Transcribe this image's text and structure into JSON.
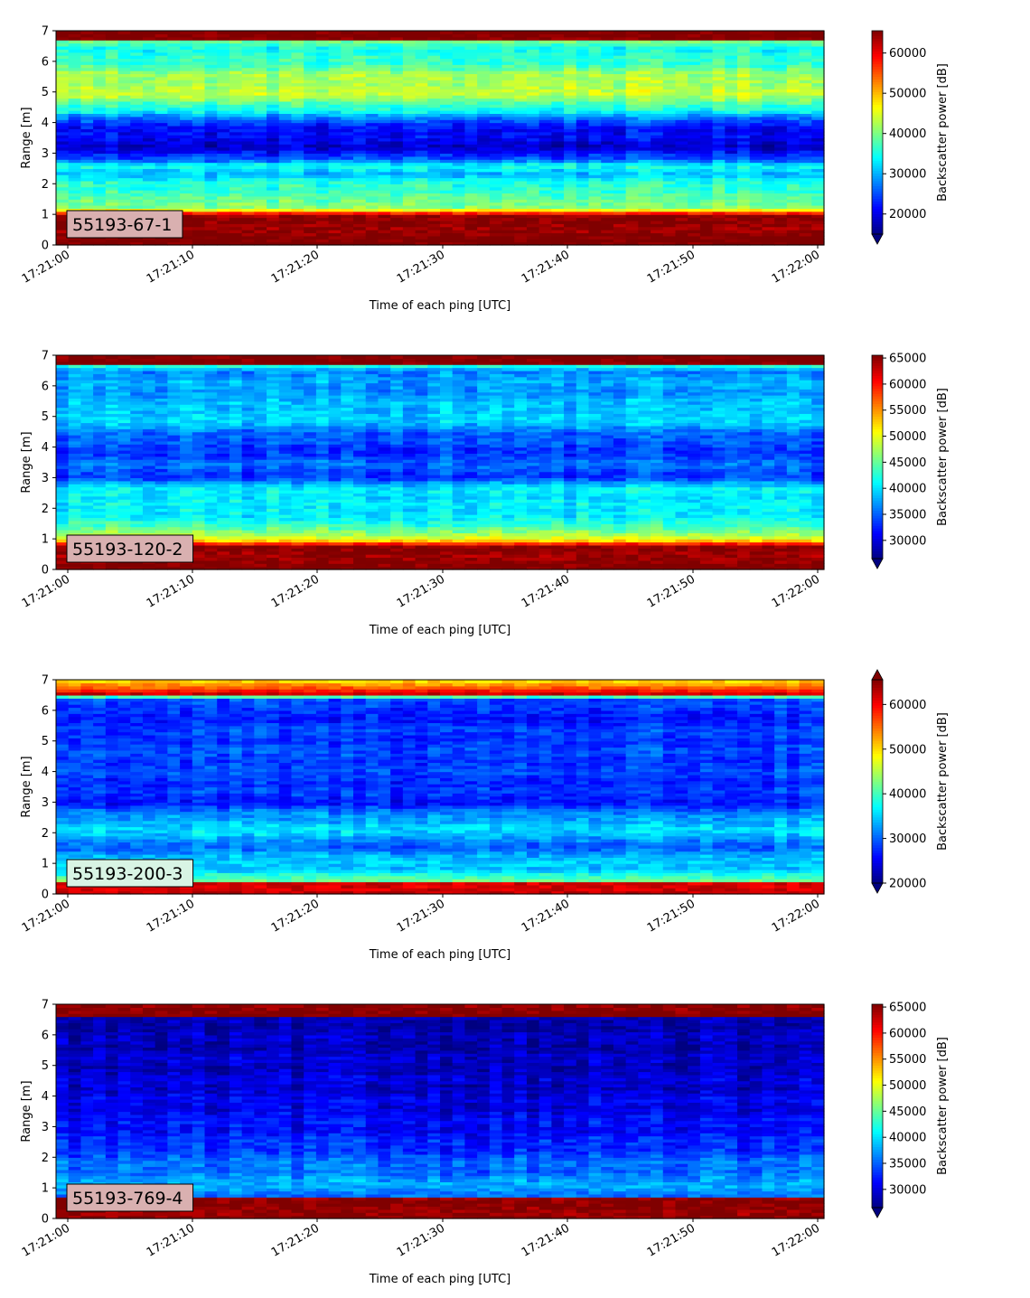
{
  "chart_data": [
    {
      "type": "heatmap",
      "label": "55193-67-1",
      "label_bg": "#d9b0b0",
      "xlabel": "Time of each ping [UTC]",
      "ylabel": "Range [m]",
      "cbar_label": "Backscatter power [dB]",
      "x_ticks": [
        "17:21:00",
        "17:21:10",
        "17:21:20",
        "17:21:30",
        "17:21:40",
        "17:21:50",
        "17:22:00"
      ],
      "y_ticks": [
        0,
        1,
        2,
        3,
        4,
        5,
        6,
        7
      ],
      "ylim": [
        0,
        7
      ],
      "clim": [
        15000,
        65535
      ],
      "cbar_ticks": [
        20000,
        30000,
        40000,
        50000,
        60000
      ],
      "extend": "min",
      "colormap": "jet",
      "profile": [
        [
          0.0,
          65535
        ],
        [
          0.3,
          65535
        ],
        [
          1.0,
          64000
        ],
        [
          1.1,
          52000
        ],
        [
          1.2,
          42000
        ],
        [
          1.5,
          38000
        ],
        [
          2.0,
          36500
        ],
        [
          2.3,
          30000
        ],
        [
          2.6,
          36000
        ],
        [
          2.8,
          25000
        ],
        [
          3.2,
          19500
        ],
        [
          3.7,
          21000
        ],
        [
          4.2,
          27000
        ],
        [
          4.4,
          35000
        ],
        [
          5.0,
          44000
        ],
        [
          5.5,
          42000
        ],
        [
          6.0,
          37000
        ],
        [
          6.4,
          34000
        ],
        [
          6.65,
          40000
        ],
        [
          6.7,
          65535
        ],
        [
          7.0,
          65535
        ]
      ]
    },
    {
      "type": "heatmap",
      "label": "55193-120-2",
      "label_bg": "#d9b0b0",
      "xlabel": "Time of each ping [UTC]",
      "ylabel": "Range [m]",
      "cbar_label": "Backscatter power [dB]",
      "x_ticks": [
        "17:21:00",
        "17:21:10",
        "17:21:20",
        "17:21:30",
        "17:21:40",
        "17:21:50",
        "17:22:00"
      ],
      "y_ticks": [
        0,
        1,
        2,
        3,
        4,
        5,
        6,
        7
      ],
      "ylim": [
        0,
        7
      ],
      "clim": [
        26500,
        65535
      ],
      "cbar_ticks": [
        30000,
        35000,
        40000,
        45000,
        50000,
        55000,
        60000,
        65000
      ],
      "extend": "min",
      "colormap": "jet",
      "profile": [
        [
          0.0,
          65535
        ],
        [
          0.8,
          64500
        ],
        [
          0.9,
          54000
        ],
        [
          1.1,
          49000
        ],
        [
          1.4,
          43000
        ],
        [
          2.0,
          40000
        ],
        [
          2.6,
          41000
        ],
        [
          3.0,
          34000
        ],
        [
          3.5,
          35000
        ],
        [
          4.0,
          33000
        ],
        [
          4.5,
          36000
        ],
        [
          5.0,
          40000
        ],
        [
          5.5,
          38000
        ],
        [
          6.0,
          37500
        ],
        [
          6.5,
          37000
        ],
        [
          6.65,
          42000
        ],
        [
          6.7,
          65535
        ],
        [
          7.0,
          65535
        ]
      ]
    },
    {
      "type": "heatmap",
      "label": "55193-200-3",
      "label_bg": "#d8f4e4",
      "xlabel": "Time of each ping [UTC]",
      "ylabel": "Range [m]",
      "cbar_label": "Backscatter power [dB]",
      "x_ticks": [
        "17:21:00",
        "17:21:10",
        "17:21:20",
        "17:21:30",
        "17:21:40",
        "17:21:50",
        "17:22:00"
      ],
      "y_ticks": [
        0,
        1,
        2,
        3,
        4,
        5,
        6,
        7
      ],
      "ylim": [
        0,
        7
      ],
      "clim": [
        20000,
        65535
      ],
      "cbar_ticks": [
        20000,
        30000,
        40000,
        50000,
        60000
      ],
      "extend": "both",
      "colormap": "jet",
      "profile": [
        [
          0.0,
          62000
        ],
        [
          0.35,
          62000
        ],
        [
          0.45,
          42000
        ],
        [
          0.8,
          34000
        ],
        [
          1.0,
          36000
        ],
        [
          1.5,
          30000
        ],
        [
          2.2,
          36000
        ],
        [
          3.0,
          27000
        ],
        [
          4.0,
          28500
        ],
        [
          5.0,
          28500
        ],
        [
          6.0,
          27000
        ],
        [
          6.4,
          30000
        ],
        [
          6.55,
          62000
        ],
        [
          6.75,
          55000
        ],
        [
          7.0,
          50000
        ]
      ]
    },
    {
      "type": "heatmap",
      "label": "55193-769-4",
      "label_bg": "#d9b0b0",
      "xlabel": "Time of each ping [UTC]",
      "ylabel": "Range [m]",
      "cbar_label": "Backscatter power [dB]",
      "x_ticks": [
        "17:21:00",
        "17:21:10",
        "17:21:20",
        "17:21:30",
        "17:21:40",
        "17:21:50",
        "17:22:00"
      ],
      "y_ticks": [
        0,
        1,
        2,
        3,
        4,
        5,
        6,
        7
      ],
      "ylim": [
        0,
        7
      ],
      "clim": [
        26500,
        65535
      ],
      "cbar_ticks": [
        30000,
        35000,
        40000,
        45000,
        50000,
        55000,
        60000,
        65000
      ],
      "extend": "min",
      "colormap": "jet",
      "profile": [
        [
          0.0,
          65535
        ],
        [
          0.7,
          64500
        ],
        [
          0.75,
          36000
        ],
        [
          1.0,
          38000
        ],
        [
          1.5,
          36000
        ],
        [
          2.0,
          34500
        ],
        [
          2.5,
          32500
        ],
        [
          3.0,
          31500
        ],
        [
          4.0,
          30000
        ],
        [
          5.0,
          29000
        ],
        [
          6.0,
          28500
        ],
        [
          6.6,
          28000
        ],
        [
          6.65,
          65535
        ],
        [
          7.0,
          65535
        ]
      ]
    }
  ]
}
